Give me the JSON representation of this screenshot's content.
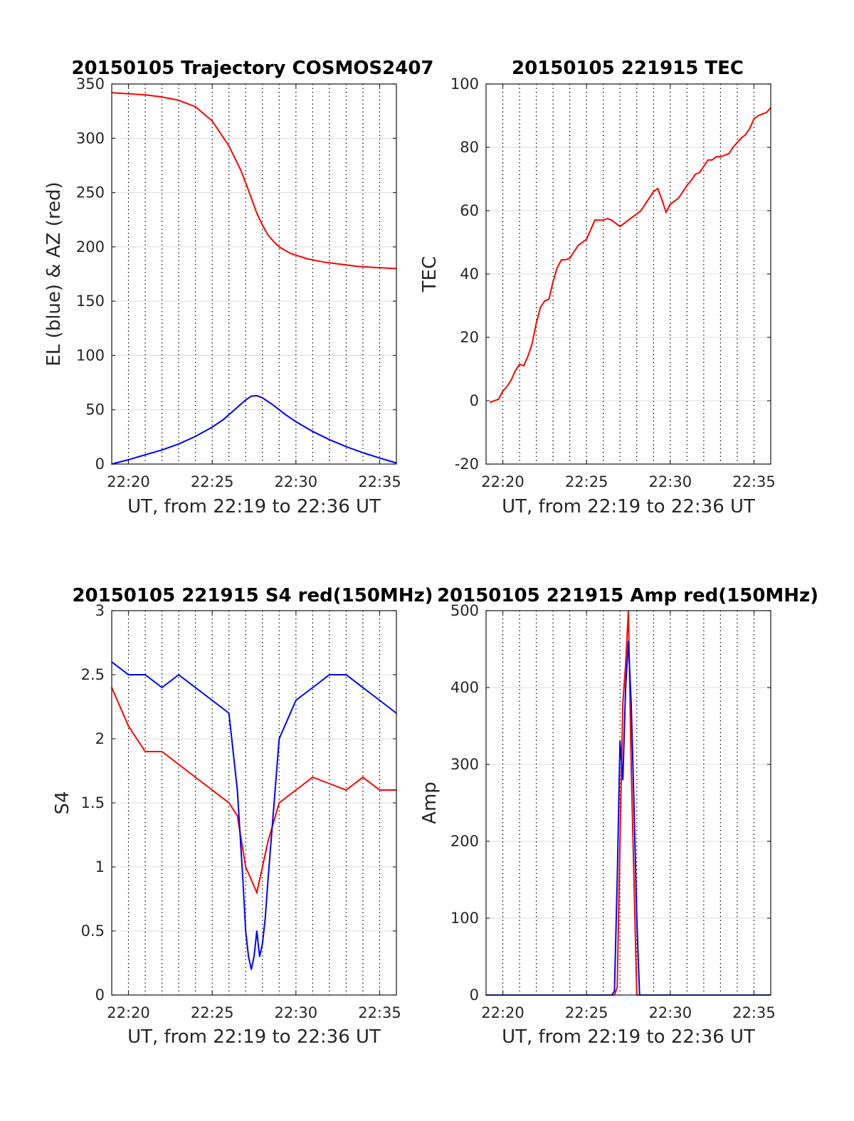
{
  "chart_data": [
    {
      "id": "trajectory",
      "type": "line",
      "title": "20150105 Trajectory COSMOS2407",
      "xlabel": "UT, from 22:19 to 22:36 UT",
      "ylabel": "EL (blue) & AZ (red)",
      "xlim": [
        0,
        1020
      ],
      "ylim": [
        0,
        350
      ],
      "x_ticks": [
        {
          "value": 60,
          "label": "22:20"
        },
        {
          "value": 360,
          "label": "22:25"
        },
        {
          "value": 660,
          "label": "22:30"
        },
        {
          "value": 960,
          "label": "22:35"
        }
      ],
      "y_ticks": [
        0,
        50,
        100,
        150,
        200,
        250,
        300,
        350
      ],
      "grid": true,
      "series": [
        {
          "color": "#ff0000",
          "x": [
            0,
            60,
            120,
            180,
            240,
            300,
            360,
            420,
            460,
            480,
            500,
            520,
            540,
            560,
            580,
            600,
            640,
            700,
            760,
            820,
            880,
            940,
            1020
          ],
          "y": [
            342,
            341,
            340,
            338,
            335,
            329,
            316,
            293,
            272,
            259,
            245,
            231,
            220,
            211,
            205,
            200,
            194,
            189,
            186,
            184,
            182,
            181,
            180
          ]
        },
        {
          "color": "#0000ff",
          "x": [
            0,
            60,
            120,
            180,
            240,
            300,
            360,
            400,
            440,
            480,
            500,
            520,
            540,
            580,
            620,
            660,
            720,
            780,
            840,
            900,
            960,
            1020
          ],
          "y": [
            0,
            4,
            8.5,
            13,
            18.5,
            25.5,
            34,
            41,
            50,
            59,
            62.5,
            63,
            61,
            54,
            46,
            39,
            30,
            22.5,
            16,
            10.5,
            5.5,
            1
          ]
        }
      ]
    },
    {
      "id": "tec",
      "type": "line",
      "title": "20150105 221915 TEC",
      "xlabel": "UT, from 22:19 to 22:36 UT",
      "ylabel": "TEC",
      "xlim": [
        0,
        1020
      ],
      "ylim": [
        -20,
        100
      ],
      "x_ticks": [
        {
          "value": 60,
          "label": "22:20"
        },
        {
          "value": 360,
          "label": "22:25"
        },
        {
          "value": 660,
          "label": "22:30"
        },
        {
          "value": 960,
          "label": "22:35"
        }
      ],
      "y_ticks": [
        -20,
        0,
        20,
        40,
        60,
        80,
        100
      ],
      "grid": true,
      "series": [
        {
          "color": "#ff0000",
          "x": [
            15,
            30,
            45,
            60,
            75,
            90,
            105,
            120,
            135,
            150,
            165,
            180,
            195,
            210,
            225,
            240,
            255,
            270,
            285,
            300,
            315,
            330,
            345,
            360,
            375,
            390,
            405,
            420,
            435,
            450,
            465,
            480,
            495,
            510,
            525,
            540,
            555,
            570,
            585,
            600,
            615,
            630,
            645,
            660,
            675,
            690,
            705,
            720,
            735,
            750,
            765,
            780,
            795,
            810,
            825,
            840,
            855,
            870,
            885,
            900,
            915,
            930,
            945,
            960,
            975,
            990,
            1005,
            1020
          ],
          "y": [
            -0.5,
            0,
            0.5,
            3,
            4.5,
            6.5,
            9.5,
            11.5,
            11,
            14,
            18,
            24.5,
            29.5,
            31.5,
            32,
            37.5,
            42,
            44.5,
            44.5,
            45,
            47,
            49,
            50,
            51,
            54,
            57,
            57,
            57,
            57.5,
            57,
            56,
            55,
            56,
            57,
            58,
            59,
            60,
            62,
            64,
            66,
            67,
            63.5,
            59.5,
            62,
            63,
            64,
            66,
            68,
            69.5,
            71.5,
            72,
            74,
            76,
            76,
            77,
            77,
            77.5,
            78,
            80,
            81.5,
            83,
            84,
            86,
            89,
            90,
            90.5,
            91,
            92.5
          ]
        }
      ]
    },
    {
      "id": "s4",
      "type": "line",
      "title": "20150105 221915 S4 red(150MHz)",
      "xlabel": "UT, from 22:19 to 22:36 UT",
      "ylabel": "S4",
      "xlim": [
        0,
        1020
      ],
      "ylim": [
        0,
        3
      ],
      "x_ticks": [
        {
          "value": 60,
          "label": "22:20"
        },
        {
          "value": 360,
          "label": "22:25"
        },
        {
          "value": 660,
          "label": "22:30"
        },
        {
          "value": 960,
          "label": "22:35"
        }
      ],
      "y_ticks": [
        0,
        0.5,
        1,
        1.5,
        2,
        2.5,
        3
      ],
      "grid": true,
      "series": [
        {
          "color": "#ff0000",
          "x": [
            0,
            60,
            120,
            180,
            240,
            300,
            360,
            420,
            450,
            480,
            500,
            520,
            540,
            560,
            600,
            660,
            720,
            780,
            840,
            900,
            960,
            1020
          ],
          "y": [
            2.4,
            2.1,
            1.9,
            1.9,
            1.8,
            1.7,
            1.6,
            1.5,
            1.4,
            1.0,
            0.9,
            0.8,
            1.0,
            1.2,
            1.5,
            1.6,
            1.7,
            1.65,
            1.6,
            1.7,
            1.6,
            1.6
          ]
        },
        {
          "color": "#0000ff",
          "x": [
            0,
            60,
            120,
            180,
            240,
            300,
            360,
            420,
            450,
            470,
            480,
            490,
            500,
            510,
            520,
            530,
            540,
            550,
            560,
            600,
            660,
            720,
            780,
            840,
            900,
            960,
            1020
          ],
          "y": [
            2.6,
            2.5,
            2.5,
            2.4,
            2.5,
            2.4,
            2.3,
            2.2,
            1.6,
            0.9,
            0.5,
            0.3,
            0.2,
            0.3,
            0.5,
            0.3,
            0.4,
            0.6,
            0.9,
            2.0,
            2.3,
            2.4,
            2.5,
            2.5,
            2.4,
            2.3,
            2.2
          ]
        }
      ]
    },
    {
      "id": "amp",
      "type": "line",
      "title": "20150105 221915 Amp red(150MHz)",
      "xlabel": "UT, from 22:19 to 22:36 UT",
      "ylabel": "Amp",
      "xlim": [
        0,
        1020
      ],
      "ylim": [
        0,
        500
      ],
      "x_ticks": [
        {
          "value": 60,
          "label": "22:20"
        },
        {
          "value": 360,
          "label": "22:25"
        },
        {
          "value": 660,
          "label": "22:30"
        },
        {
          "value": 960,
          "label": "22:35"
        }
      ],
      "y_ticks": [
        0,
        100,
        200,
        300,
        400,
        500
      ],
      "grid": true,
      "series": [
        {
          "color": "#ff0000",
          "x": [
            0,
            460,
            470,
            480,
            490,
            500,
            510,
            520,
            530,
            540,
            1020
          ],
          "y": [
            0,
            0,
            10,
            200,
            380,
            430,
            500,
            300,
            150,
            0,
            0
          ]
        },
        {
          "color": "#0000ff",
          "x": [
            0,
            450,
            460,
            470,
            480,
            490,
            500,
            510,
            520,
            530,
            540,
            550,
            1020
          ],
          "y": [
            0,
            0,
            5,
            150,
            330,
            280,
            400,
            460,
            380,
            250,
            100,
            0,
            0
          ]
        }
      ]
    }
  ]
}
